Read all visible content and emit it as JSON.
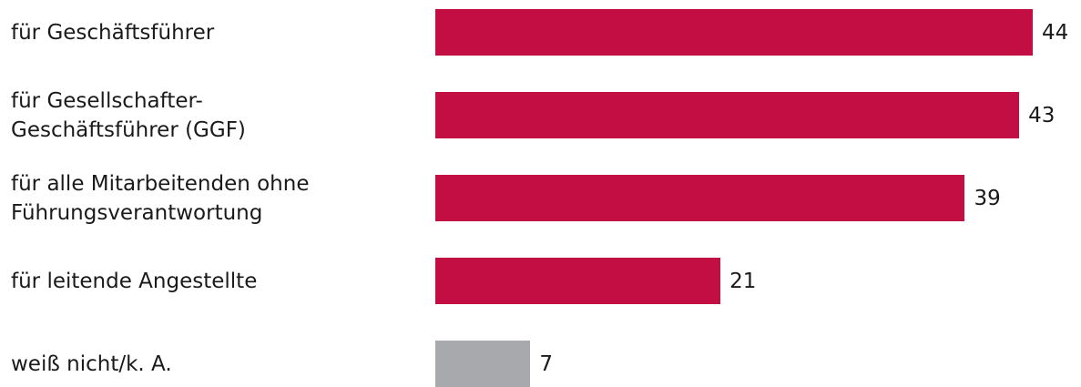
{
  "colors": {
    "primary": "#c20e42",
    "neutral": "#a8a9ad"
  },
  "chart_data": {
    "type": "bar",
    "orientation": "horizontal",
    "categories": [
      "für Geschäftsführer",
      "für Gesellschafter-\nGeschäftsführer (GGF)",
      "für alle Mitarbeitenden ohne\nFührungsverantwortung",
      "für leitende Angestellte",
      "weiß nicht/k. A."
    ],
    "values": [
      44,
      43,
      39,
      21,
      7
    ],
    "bar_colors": [
      "#c20e42",
      "#c20e42",
      "#c20e42",
      "#c20e42",
      "#a8a9ad"
    ],
    "xlim": [
      0,
      50
    ],
    "grid": false,
    "legend": "none"
  }
}
